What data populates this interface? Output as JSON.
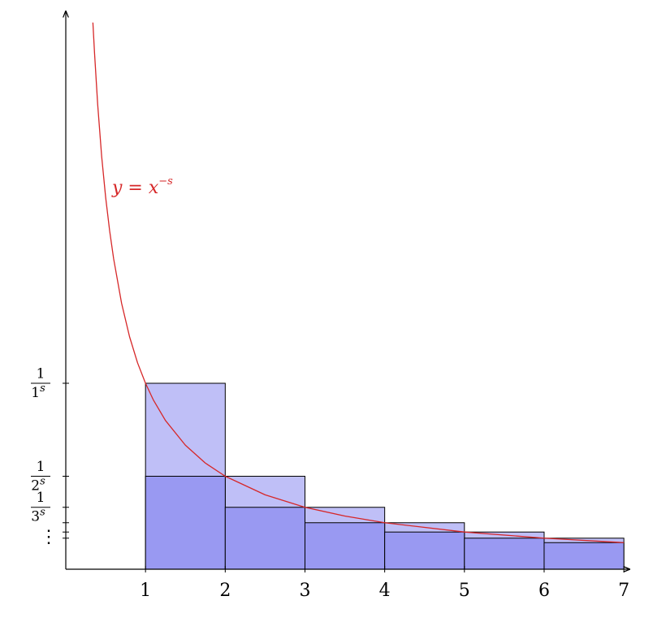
{
  "chart_data": {
    "type": "riemann",
    "xlim": [
      0,
      7.07
    ],
    "ylim": [
      0,
      3.0
    ],
    "xticks": [
      1,
      2,
      3,
      4,
      5,
      6,
      7
    ],
    "yticks": [
      {
        "value": 1,
        "label": [
          "1",
          "1",
          "s"
        ]
      },
      {
        "value": 0.5,
        "label": [
          "1",
          "2",
          "s"
        ]
      },
      {
        "value": 0.333,
        "label": [
          "1",
          "3",
          "s"
        ]
      }
    ],
    "minor_yticks": [
      0.25,
      0.2,
      0.167
    ],
    "ellipsis": "⋮",
    "bins": [
      1,
      2,
      3,
      4,
      5,
      6,
      7
    ],
    "upper_values": [
      1,
      0.5,
      0.333,
      0.25,
      0.2,
      0.167
    ],
    "lower_values": [
      0.5,
      0.333,
      0.25,
      0.2,
      0.167,
      0.143
    ],
    "upper_color": "#bfbff7",
    "lower_color": "#9999f2",
    "curve": {
      "label": [
        "y = x",
        "−s"
      ],
      "color": "#d62728",
      "x": [
        0.34,
        0.36,
        0.4,
        0.45,
        0.5,
        0.55,
        0.6,
        0.7,
        0.8,
        0.9,
        1,
        1.1,
        1.25,
        1.5,
        1.75,
        2,
        2.5,
        3,
        3.5,
        4,
        5,
        6,
        7
      ],
      "values": [
        2.94,
        2.78,
        2.5,
        2.22,
        2,
        1.82,
        1.67,
        1.43,
        1.25,
        1.11,
        1,
        0.909,
        0.8,
        0.667,
        0.571,
        0.5,
        0.4,
        0.333,
        0.286,
        0.25,
        0.2,
        0.167,
        0.143
      ]
    }
  }
}
